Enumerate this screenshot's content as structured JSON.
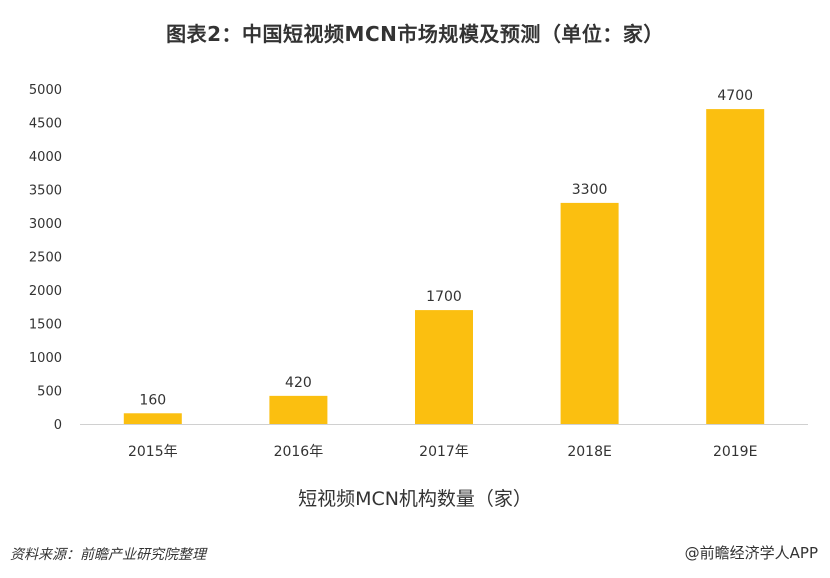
{
  "chart_data": {
    "type": "bar",
    "title": "图表2：中国短视频MCN市场规模及预测（单位：家）",
    "categories": [
      "2015年",
      "2016年",
      "2017年",
      "2018E",
      "2019E"
    ],
    "series": [
      {
        "name": "短视频MCN机构数量（家）",
        "values": [
          160,
          420,
          1700,
          3300,
          4700
        ]
      }
    ],
    "data_labels": [
      "160",
      "420",
      "1700",
      "3300",
      "4700"
    ],
    "ylim": [
      0,
      5000
    ],
    "yticks": [
      "0",
      "500",
      "1000",
      "1500",
      "2000",
      "2500",
      "3000",
      "3500",
      "4000",
      "4500",
      "5000"
    ],
    "grid": false,
    "legend_position": "bottom",
    "bar_color": "#FBBF10"
  },
  "footer": {
    "source": "资料来源：前瞻产业研究院整理",
    "credit": "@前瞻经济学人APP"
  }
}
